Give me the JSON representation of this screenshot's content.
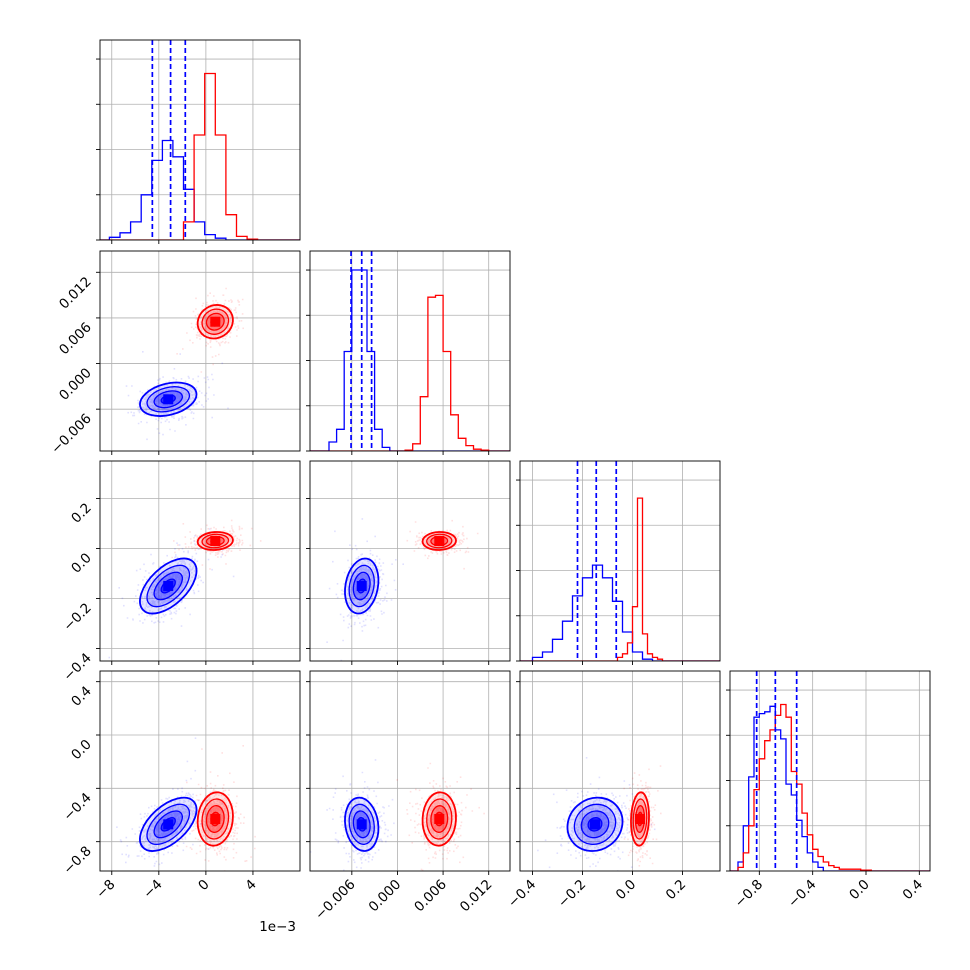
{
  "chart_data": {
    "type": "corner",
    "parameters": [
      {
        "ticks": [
          -8,
          -4,
          0,
          4
        ],
        "tick_labels": [
          "−8",
          "−4",
          "0",
          "4"
        ],
        "range": [
          -9,
          8
        ],
        "offset_label": "1e−3"
      },
      {
        "ticks": [
          -0.006,
          0.0,
          0.006,
          0.012
        ],
        "tick_labels": [
          "−0.006",
          "0.000",
          "0.006",
          "0.012"
        ],
        "range": [
          -0.0115,
          0.0148
        ]
      },
      {
        "ticks": [
          -0.4,
          -0.2,
          0.0,
          0.2
        ],
        "tick_labels": [
          "−0.4",
          "−0.2",
          "0.0",
          "0.2"
        ],
        "range": [
          -0.45,
          0.35
        ]
      },
      {
        "ticks": [
          -0.8,
          -0.4,
          0.0,
          0.4
        ],
        "tick_labels": [
          "−0.8",
          "−0.4",
          "0.0",
          "0.4"
        ],
        "range": [
          -1.02,
          0.48
        ]
      }
    ],
    "grid": true,
    "series": [
      {
        "color": "#0000ff",
        "means": [
          -3.2,
          -0.0047,
          -0.15,
          -0.67
        ],
        "sds": [
          1.2,
          0.0011,
          0.055,
          0.1
        ],
        "correlations": [
          [
            0,
            1,
            0.3
          ],
          [
            0,
            2,
            0.55
          ],
          [
            0,
            3,
            0.55
          ],
          [
            1,
            2,
            0.2
          ],
          [
            1,
            3,
            -0.15
          ],
          [
            2,
            3,
            0.1
          ]
        ],
        "quantiles": [
          [
            -4.55,
            -3.0,
            -1.75
          ],
          [
            -0.0061,
            -0.0047,
            -0.0034
          ],
          [
            -0.22,
            -0.145,
            -0.065
          ],
          [
            -0.82,
            -0.68,
            -0.52
          ]
        ],
        "histograms": [
          {
            "edges": [
              -8.2,
              -7.3,
              -6.4,
              -5.5,
              -4.6,
              -3.7,
              -2.8,
              -1.9,
              -1.0,
              -0.1,
              0.8,
              1.7
            ],
            "heights": [
              0.015,
              0.04,
              0.1,
              0.25,
              0.44,
              0.55,
              0.46,
              0.28,
              0.1,
              0.03,
              0.01
            ]
          },
          {
            "edges": [
              -0.009,
              -0.008,
              -0.007,
              -0.006,
              -0.005,
              -0.004,
              -0.003,
              -0.002,
              -0.001
            ],
            "heights": [
              0.05,
              0.12,
              0.55,
              1.0,
              1.0,
              0.55,
              0.12,
              0.02
            ]
          },
          {
            "edges": [
              -0.4,
              -0.36,
              -0.32,
              -0.28,
              -0.24,
              -0.2,
              -0.16,
              -0.12,
              -0.08,
              -0.04,
              0.0,
              0.04,
              0.08
            ],
            "heights": [
              0.02,
              0.05,
              0.12,
              0.22,
              0.36,
              0.46,
              0.53,
              0.46,
              0.33,
              0.16,
              0.05,
              0.01
            ]
          },
          {
            "edges": [
              -0.96,
              -0.92,
              -0.88,
              -0.84,
              -0.8,
              -0.76,
              -0.72,
              -0.68,
              -0.64,
              -0.6,
              -0.56,
              -0.52,
              -0.48,
              -0.44,
              -0.4,
              -0.36,
              -0.32
            ],
            "heights": [
              0.05,
              0.25,
              0.52,
              0.85,
              0.87,
              0.88,
              0.91,
              0.78,
              0.73,
              0.48,
              0.42,
              0.28,
              0.19,
              0.1,
              0.05,
              0.02
            ]
          }
        ]
      },
      {
        "color": "#ff0000",
        "means": [
          0.8,
          0.0055,
          0.03,
          -0.63
        ],
        "sds": [
          0.75,
          0.0011,
          0.018,
          0.1
        ],
        "correlations": [
          [
            0,
            1,
            0.1
          ],
          [
            0,
            2,
            0.1
          ],
          [
            0,
            3,
            0.1
          ],
          [
            1,
            2,
            0.05
          ],
          [
            1,
            3,
            0.05
          ],
          [
            2,
            3,
            0.1
          ]
        ],
        "quantiles": [],
        "histograms": [
          {
            "edges": [
              -1.9,
              -1.0,
              -0.1,
              0.8,
              1.7,
              2.6,
              3.5,
              4.4
            ],
            "heights": [
              0.1,
              0.58,
              0.92,
              0.58,
              0.14,
              0.02,
              0.005
            ]
          },
          {
            "edges": [
              0.001,
              0.002,
              0.003,
              0.004,
              0.005,
              0.006,
              0.007,
              0.008,
              0.009,
              0.01,
              0.011,
              0.012
            ],
            "heights": [
              0.005,
              0.04,
              0.3,
              0.85,
              0.86,
              0.55,
              0.2,
              0.07,
              0.03,
              0.01,
              0.005
            ]
          },
          {
            "edges": [
              -0.06,
              -0.04,
              -0.02,
              0.0,
              0.02,
              0.04,
              0.06,
              0.08,
              0.1,
              0.12
            ],
            "heights": [
              0.02,
              0.04,
              0.1,
              0.3,
              0.9,
              0.15,
              0.04,
              0.02,
              0.01
            ]
          },
          {
            "edges": [
              -0.96,
              -0.92,
              -0.88,
              -0.84,
              -0.8,
              -0.76,
              -0.72,
              -0.68,
              -0.64,
              -0.6,
              -0.56,
              -0.52,
              -0.48,
              -0.44,
              -0.4,
              -0.36,
              -0.32,
              -0.28,
              -0.24,
              -0.2,
              -0.16,
              -0.12,
              -0.08,
              -0.04,
              0.0,
              0.04
            ],
            "heights": [
              0.02,
              0.1,
              0.25,
              0.45,
              0.62,
              0.72,
              0.78,
              0.86,
              0.92,
              0.85,
              0.55,
              0.48,
              0.32,
              0.2,
              0.12,
              0.08,
              0.05,
              0.03,
              0.02,
              0.01,
              0.01,
              0.01,
              0.01,
              0.005,
              0.005
            ]
          }
        ]
      }
    ]
  }
}
